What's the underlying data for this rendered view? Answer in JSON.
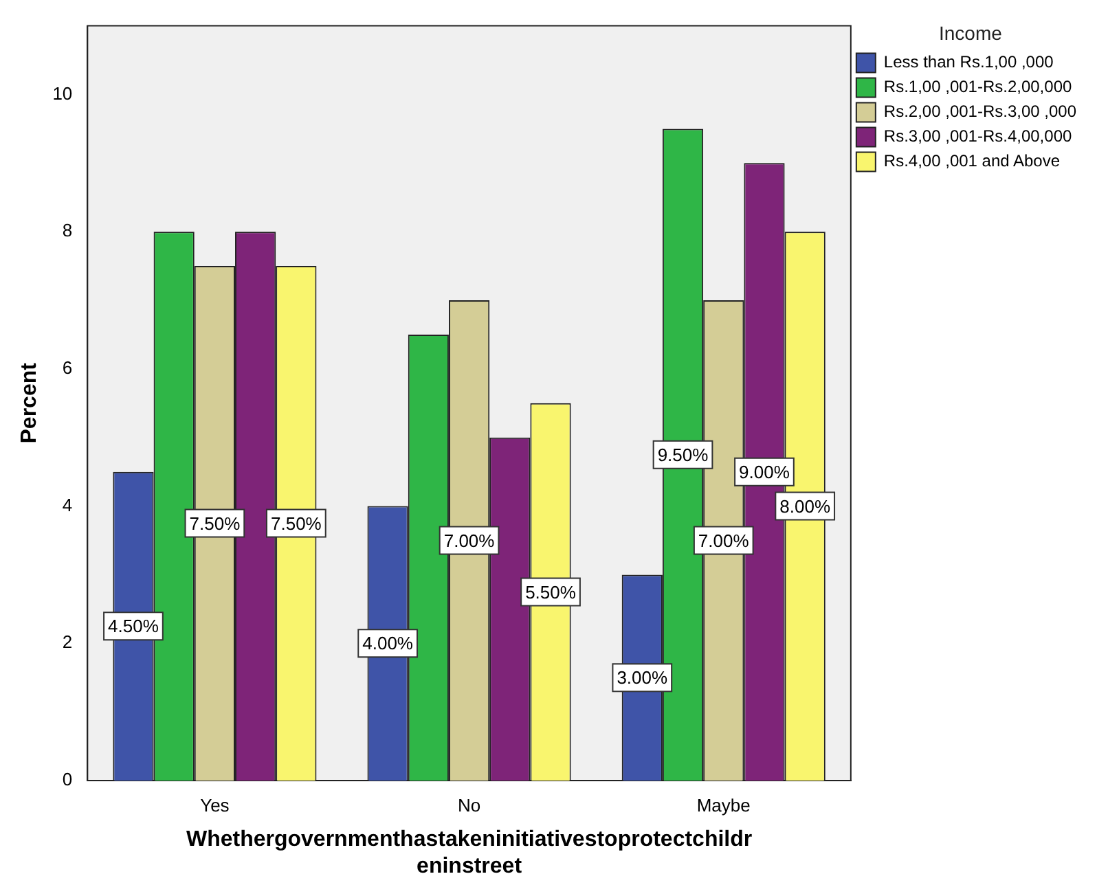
{
  "chart_data": {
    "type": "bar",
    "xlabel": "Whethergovernmenthastakeninitiativestoprotectchildreninstreet",
    "ylabel": "Percent",
    "legend_title": "Income",
    "categories": [
      "Yes",
      "No",
      "Maybe"
    ],
    "series": [
      {
        "name": "Less than Rs.1,00 ,000",
        "color": "#3f54a8",
        "values": [
          4.5,
          4.0,
          3.0
        ],
        "value_labels": [
          "4.50%",
          "4.00%",
          "3.00%"
        ]
      },
      {
        "name": "Rs.1,00 ,001-Rs.2,00,000",
        "color": "#2fb647",
        "values": [
          8.0,
          6.5,
          9.5
        ],
        "value_labels": [
          null,
          null,
          "9.50%"
        ]
      },
      {
        "name": "Rs.2,00 ,001-Rs.3,00 ,000",
        "color": "#d4cd96",
        "values": [
          7.5,
          7.0,
          7.0
        ],
        "value_labels": [
          "7.50%",
          "7.00%",
          "7.00%"
        ]
      },
      {
        "name": "Rs.3,00 ,001-Rs.4,00,000",
        "color": "#7e2478",
        "values": [
          8.0,
          5.0,
          9.0
        ],
        "value_labels": [
          null,
          null,
          "9.00%"
        ]
      },
      {
        "name": "Rs.4,00 ,001 and Above",
        "color": "#f9f56e",
        "values": [
          7.5,
          5.5,
          8.0
        ],
        "value_labels": [
          "7.50%",
          "5.50%",
          "8.00%"
        ]
      }
    ],
    "ylim": [
      0,
      11
    ],
    "yticks": [
      0,
      2,
      4,
      6,
      8,
      10
    ],
    "grid": false,
    "legend": "top right"
  }
}
